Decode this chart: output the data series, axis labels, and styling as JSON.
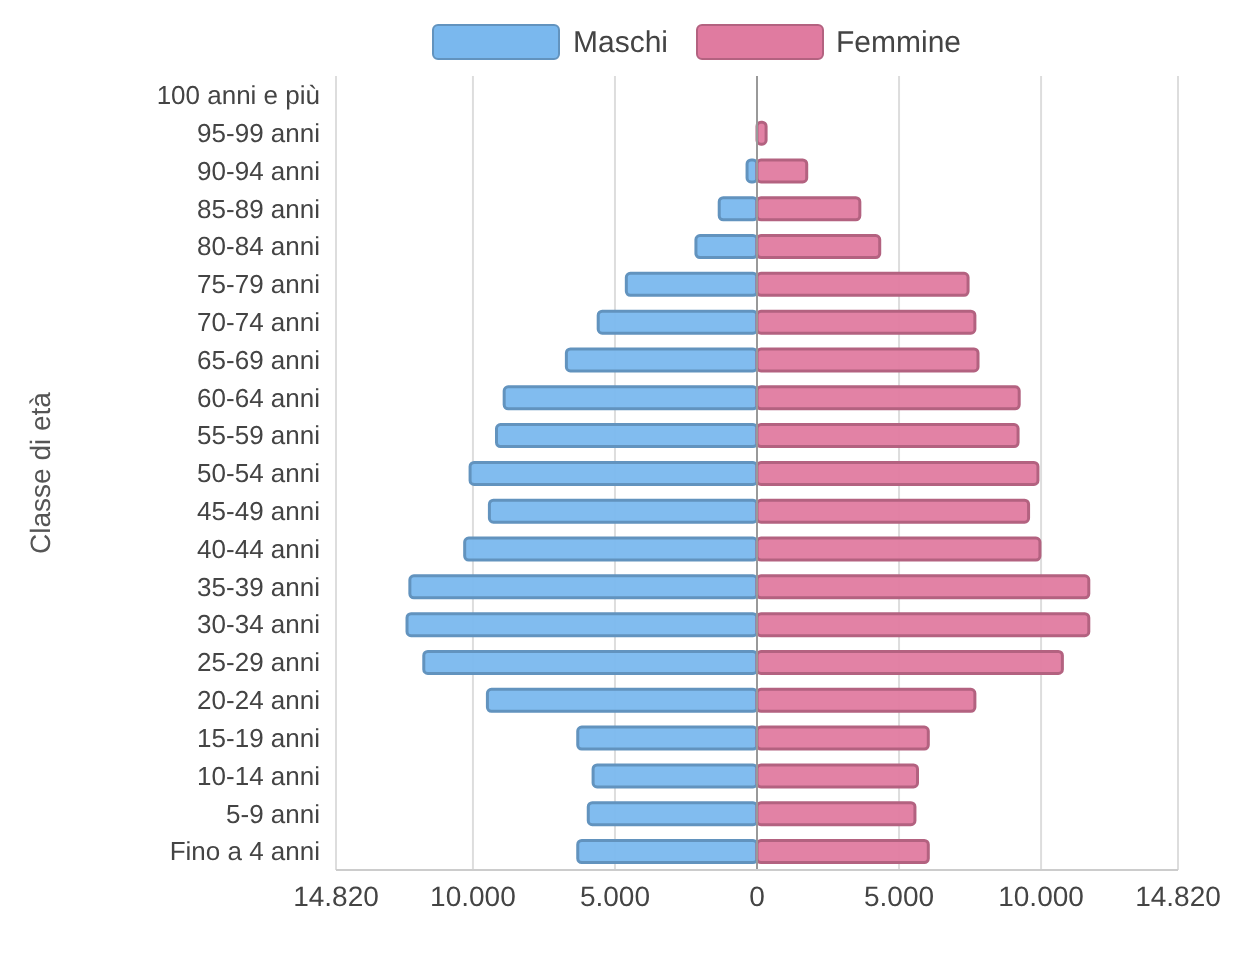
{
  "chart_data": {
    "type": "bar",
    "orientation": "horizontal",
    "stacked": true,
    "ylabel": "Classe di età",
    "categories": [
      "100 anni e più",
      "95-99 anni",
      "90-94 anni",
      "85-89 anni",
      "80-84 anni",
      "75-79 anni",
      "70-74 anni",
      "65-69 anni",
      "60-64 anni",
      "55-59 anni",
      "50-54 anni",
      "45-49 anni",
      "40-44 anni",
      "35-39 anni",
      "30-34 anni",
      "25-29 anni",
      "20-24 anni",
      "15-19 anni",
      "10-14 anni",
      "5-9 anni",
      "Fino a 4 anni"
    ],
    "series": [
      {
        "name": "Maschi",
        "color": "#7ab8ee",
        "values": [
          0,
          0,
          -350,
          -1330,
          -2150,
          -4600,
          -5590,
          -6710,
          -8900,
          -9170,
          -10100,
          -9420,
          -10290,
          -12220,
          -12320,
          -11730,
          -9490,
          -6310,
          -5770,
          -5940,
          -6310
        ]
      },
      {
        "name": "Femmine",
        "color": "#e07ba0",
        "values": [
          0,
          320,
          1750,
          3620,
          4320,
          7430,
          7670,
          7780,
          9230,
          9190,
          9890,
          9560,
          9960,
          11680,
          11680,
          10750,
          7670,
          6030,
          5650,
          5560,
          6030
        ]
      }
    ],
    "xlim": [
      -14820,
      14820
    ],
    "xticks": [
      {
        "value": -14820,
        "label": "14.820"
      },
      {
        "value": -10000,
        "label": "10.000"
      },
      {
        "value": -5000,
        "label": "5.000"
      },
      0,
      {
        "value": 5000,
        "label": "5.000"
      },
      {
        "value": 10000,
        "label": "10.000"
      },
      {
        "value": 14820,
        "label": "14.820"
      }
    ],
    "ref_lines": [
      {
        "axis": "x",
        "value": 0,
        "color": "#999999"
      }
    ],
    "grid": "x",
    "legend": "top"
  }
}
